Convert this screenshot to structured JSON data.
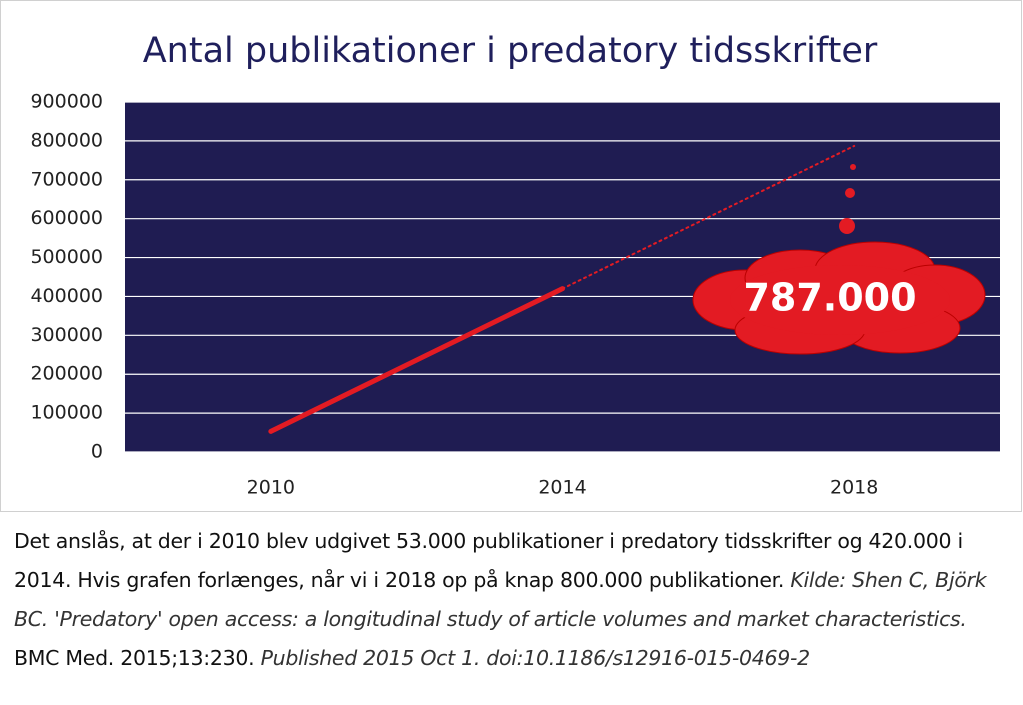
{
  "chart_data": {
    "type": "line",
    "title": "Antal publikationer i predatory tidsskrifter",
    "categories": [
      "2010",
      "2014",
      "2018"
    ],
    "series": [
      {
        "color": "#e31b23",
        "linestyle": "solid",
        "values": [
          53000,
          420000,
          null
        ]
      },
      {
        "color": "#e31b23",
        "linestyle": "dotted",
        "values": [
          null,
          420000,
          787000
        ],
        "value_labels": [
          null,
          null,
          "787.000"
        ]
      }
    ],
    "ylim": [
      0,
      900000
    ],
    "yticks": [
      0,
      100000,
      200000,
      300000,
      400000,
      500000,
      600000,
      700000,
      800000,
      900000
    ],
    "grid": true,
    "plot_background": "#1f1c52"
  },
  "caption": {
    "intro": "Det anslås, at der i 2010 blev udgivet 53.000 publikationer i predatory tidsskrifter og 420.000 i 2014. Hvis grafen forlænges, når vi i 2018 op på knap 800.000 publikationer.",
    "source": [
      "Kilde: Shen C, Björk BC. 'Predatory' open access: a longitudinal study of article volumes and market characteristics.",
      "BMC Med. 2015;13:230.",
      "Published 2015 Oct 1. doi:10.1186/s12916-015-0469-2"
    ]
  }
}
